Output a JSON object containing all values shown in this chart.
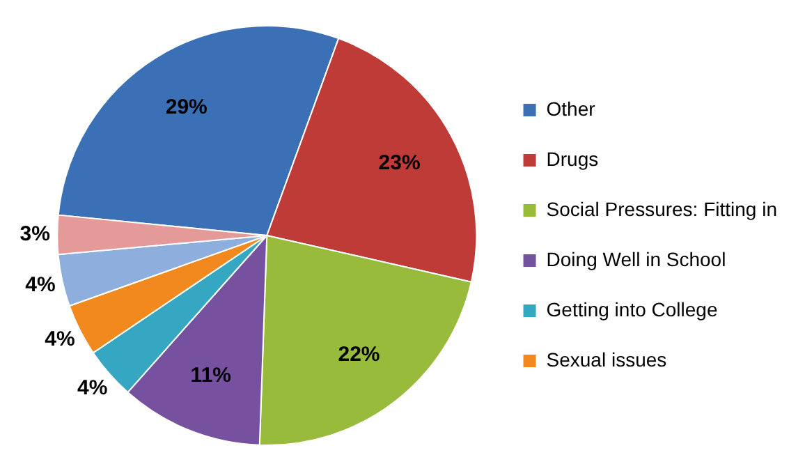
{
  "chart_data": {
    "type": "pie",
    "categories": [
      "Other",
      "Drugs",
      "Social Pressures: Fitting in",
      "Doing Well in School",
      "Getting into College",
      "Sexual issues",
      null,
      null
    ],
    "values": [
      29,
      23,
      22,
      11,
      4,
      4,
      4,
      3
    ],
    "colors": [
      "#3b6fb6",
      "#be3b37",
      "#98bb3c",
      "#7651a0",
      "#35a7c3",
      "#f2891f",
      "#8eafdd",
      "#e39a98"
    ],
    "value_labels": [
      "29%",
      "23%",
      "22%",
      "11%",
      "4%",
      "4%",
      "4%",
      "3%"
    ],
    "legend": "right"
  }
}
